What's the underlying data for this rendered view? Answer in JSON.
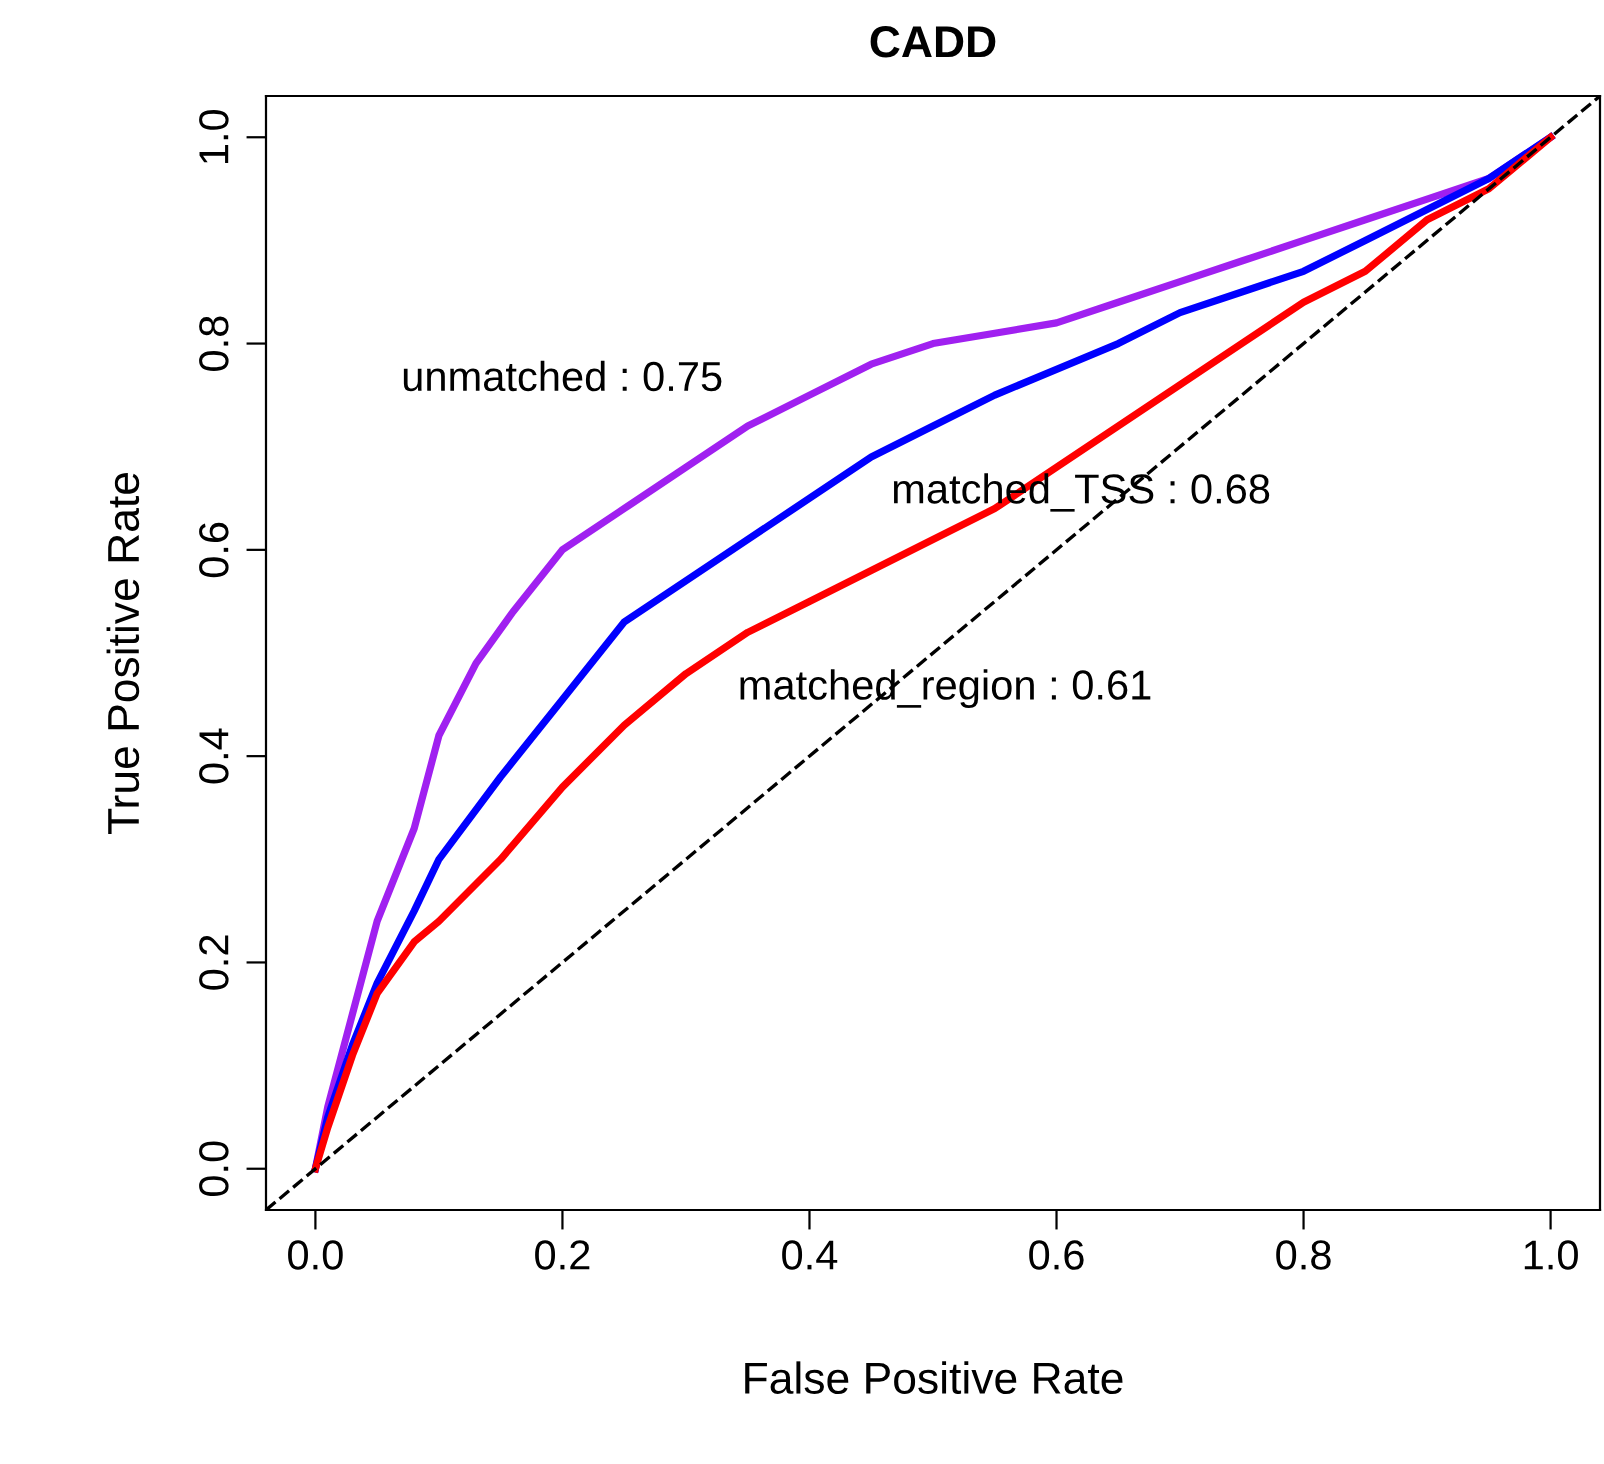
{
  "chart_data": {
    "type": "line",
    "title": "CADD",
    "xlabel": "False Positive Rate",
    "ylabel": "True Positive Rate",
    "xlim": [
      -0.04,
      1.04
    ],
    "ylim": [
      -0.04,
      1.04
    ],
    "xticks": [
      {
        "value": 0,
        "label": "0.0"
      },
      0.2,
      0.4,
      0.6,
      0.8,
      {
        "value": 1,
        "label": "1.0"
      }
    ],
    "yticks": [
      {
        "value": 0,
        "label": "0.0"
      },
      0.2,
      0.4,
      0.6,
      0.8,
      {
        "value": 1,
        "label": "1.0"
      }
    ],
    "grid": false,
    "legend": false,
    "series": [
      {
        "color": "#a020f0",
        "x": [
          0,
          0.01,
          0.03,
          0.05,
          0.08,
          0.1,
          0.13,
          0.16,
          0.2,
          0.25,
          0.3,
          0.35,
          0.4,
          0.45,
          0.5,
          0.55,
          0.6,
          0.65,
          0.7,
          0.75,
          0.8,
          0.85,
          0.9,
          0.95,
          1
        ],
        "values": [
          0,
          0.06,
          0.15,
          0.24,
          0.33,
          0.42,
          0.49,
          0.54,
          0.6,
          0.64,
          0.68,
          0.72,
          0.75,
          0.78,
          0.8,
          0.81,
          0.82,
          0.84,
          0.86,
          0.88,
          0.9,
          0.92,
          0.94,
          0.96,
          1
        ]
      },
      {
        "color": "#0000ff",
        "x": [
          0,
          0.01,
          0.03,
          0.05,
          0.08,
          0.1,
          0.15,
          0.2,
          0.25,
          0.3,
          0.35,
          0.4,
          0.45,
          0.5,
          0.55,
          0.6,
          0.65,
          0.7,
          0.75,
          0.8,
          0.85,
          0.9,
          0.95,
          1
        ],
        "values": [
          0,
          0.05,
          0.12,
          0.18,
          0.25,
          0.3,
          0.38,
          0.455,
          0.53,
          0.57,
          0.61,
          0.65,
          0.69,
          0.72,
          0.75,
          0.775,
          0.8,
          0.83,
          0.85,
          0.87,
          0.9,
          0.93,
          0.96,
          1
        ]
      },
      {
        "color": "#ff0000",
        "x": [
          0,
          0.01,
          0.03,
          0.05,
          0.08,
          0.1,
          0.15,
          0.2,
          0.25,
          0.3,
          0.35,
          0.4,
          0.45,
          0.5,
          0.55,
          0.6,
          0.65,
          0.7,
          0.75,
          0.8,
          0.85,
          0.9,
          0.95,
          1
        ],
        "values": [
          0,
          0.04,
          0.11,
          0.17,
          0.22,
          0.24,
          0.3,
          0.37,
          0.43,
          0.48,
          0.52,
          0.55,
          0.58,
          0.61,
          0.64,
          0.68,
          0.72,
          0.76,
          0.8,
          0.84,
          0.87,
          0.92,
          0.95,
          1
        ]
      },
      {
        "color": "#000000",
        "line_style": "dashed",
        "x": [
          -0.04,
          1.04
        ],
        "values": [
          -0.04,
          1.04
        ]
      }
    ],
    "annotations": [
      "unmatched : 0.75",
      "matched_TSS : 0.68",
      "matched_region : 0.61"
    ]
  }
}
